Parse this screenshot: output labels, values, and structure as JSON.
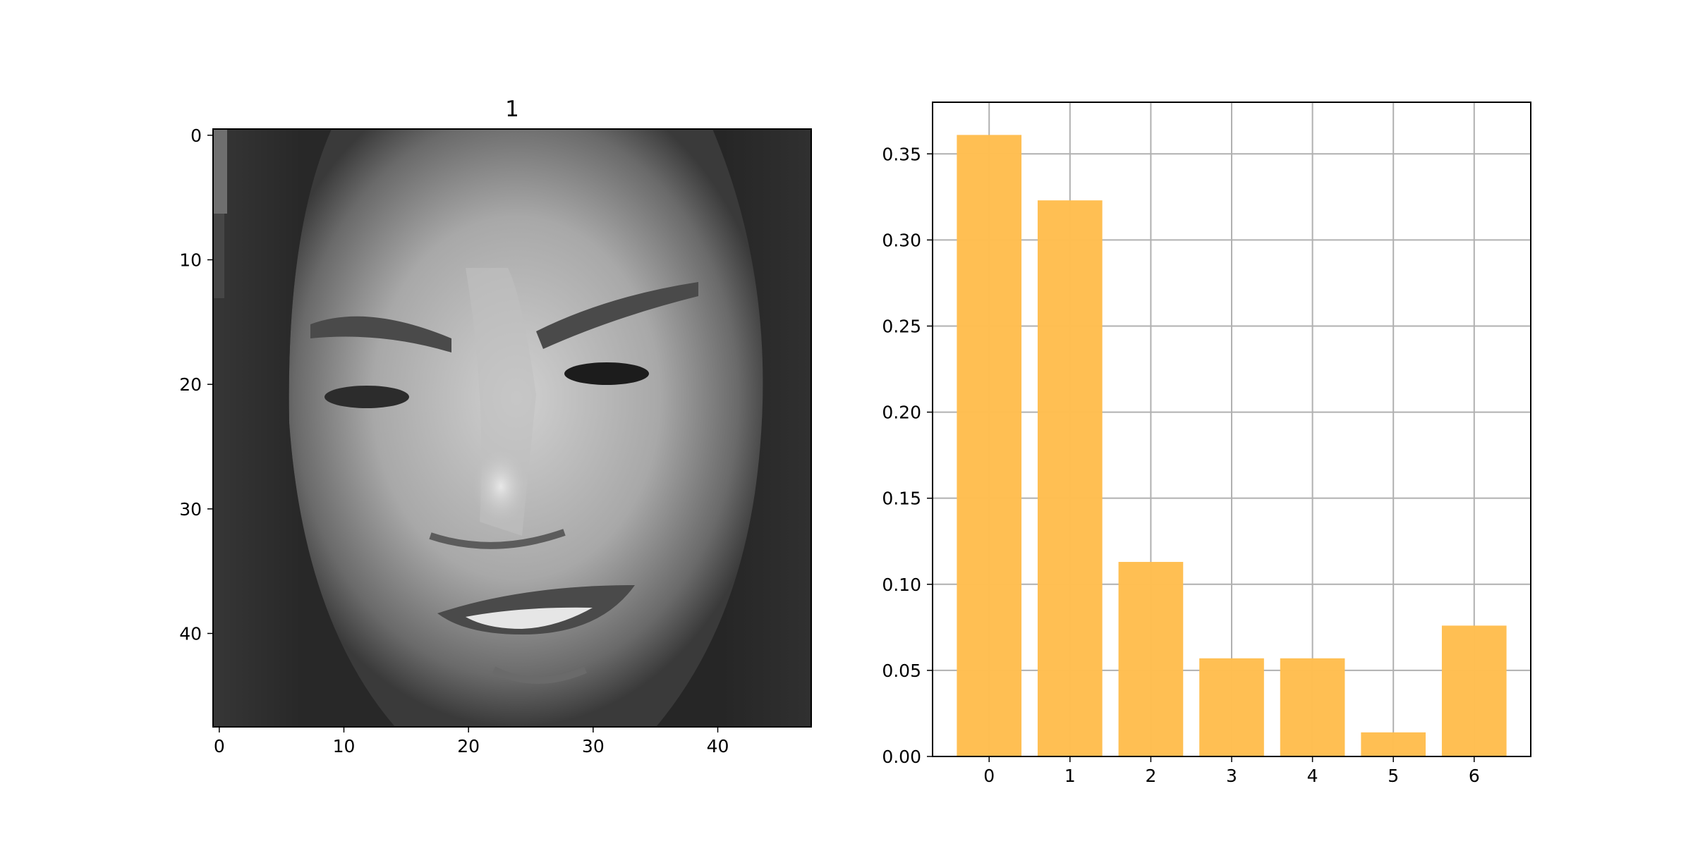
{
  "figure": {
    "image_panel": {
      "title": "1",
      "image_size": [
        48,
        48
      ],
      "x_ticks": [
        "0",
        "10",
        "20",
        "30",
        "40"
      ],
      "y_ticks": [
        "0",
        "10",
        "20",
        "30",
        "40"
      ],
      "colormap": "gray",
      "content": "grayscale facial expression image"
    },
    "chart_data": {
      "type": "bar",
      "categories": [
        "0",
        "1",
        "2",
        "3",
        "4",
        "5",
        "6"
      ],
      "values": [
        0.361,
        0.323,
        0.113,
        0.057,
        0.057,
        0.014,
        0.076
      ],
      "y_ticks": [
        "0.00",
        "0.05",
        "0.10",
        "0.15",
        "0.20",
        "0.25",
        "0.30",
        "0.35"
      ],
      "ylim": [
        0,
        0.38
      ],
      "xlabel": "",
      "ylabel": "",
      "title": "",
      "grid": true,
      "bar_color": "#ffbe50",
      "grid_color": "#b0b0b0"
    }
  }
}
